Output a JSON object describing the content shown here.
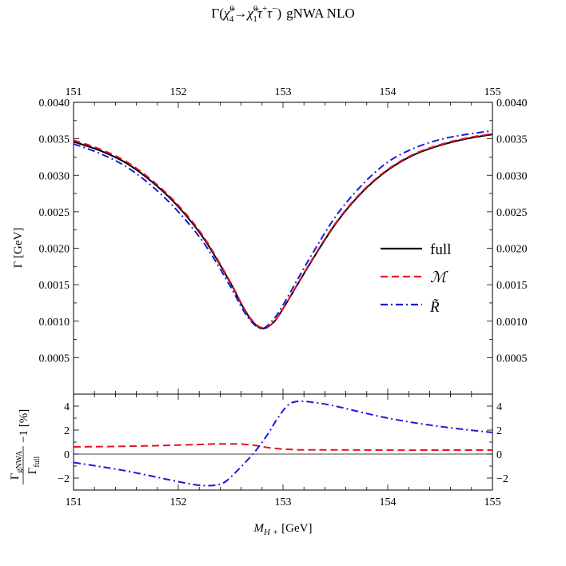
{
  "title": {
    "gamma": "Γ(",
    "chi_a": "χ̃",
    "chi_a_sup": "0",
    "chi_a_sub": "4",
    "arrow": "→",
    "chi_b": "χ̃",
    "chi_b_sup": "0",
    "chi_b_sub": "1",
    "tau1": "τ",
    "tau1_sup": "+",
    "tau2": "τ",
    "tau2_sup": "−",
    "close": ")",
    "suffix": "gNWA NLO"
  },
  "xlabel": {
    "sym": "M",
    "sub": "H +",
    "unit": "[GeV]"
  },
  "main_ylabel": "Γ [GeV]",
  "ratio_ylabel": {
    "num_sym": "Γ",
    "num_sub": "gNWA",
    "den_sym": "Γ",
    "den_sub": "full",
    "tail": "−1 [%]"
  },
  "legend": [
    {
      "label": "full",
      "color": "#000000",
      "dash": "solid"
    },
    {
      "label": "ℳ",
      "color": "#e8112d",
      "dash": "dashed"
    },
    {
      "label": "R̃",
      "color": "#1a1adb",
      "dash": "dashdot"
    }
  ],
  "chart_data": [
    {
      "type": "line",
      "panel": "main",
      "title": "Γ(χ̃⁰₄→χ̃⁰₁τ⁺τ⁻) gNWA NLO",
      "xlabel": "M_H+ [GeV]",
      "ylabel": "Γ [GeV]",
      "xlim": [
        151,
        155
      ],
      "ylim": [
        0,
        0.004
      ],
      "xticks": [
        151,
        152,
        153,
        154,
        155
      ],
      "yticks": [
        0.0005,
        0.001,
        0.0015,
        0.002,
        0.0025,
        0.003,
        0.0035,
        0.004
      ],
      "ytick_labels": [
        "0.0005",
        "0.0010",
        "0.0015",
        "0.0020",
        "0.0025",
        "0.0030",
        "0.0035",
        "0.0040"
      ],
      "x": [
        151.0,
        151.25,
        151.5,
        151.75,
        152.0,
        152.25,
        152.5,
        152.6,
        152.7,
        152.8,
        152.9,
        153.0,
        153.25,
        153.5,
        153.75,
        154.0,
        154.25,
        154.5,
        154.75,
        155.0
      ],
      "series": [
        {
          "name": "full",
          "color": "#000000",
          "dash": "solid",
          "values": [
            0.00346,
            0.00334,
            0.00317,
            0.00291,
            0.00257,
            0.00212,
            0.00152,
            0.00124,
            0.00101,
            0.0009,
            0.00097,
            0.00117,
            0.00177,
            0.00233,
            0.00276,
            0.00307,
            0.00328,
            0.00341,
            0.0035,
            0.00356
          ]
        },
        {
          "name": "M",
          "color": "#e8112d",
          "dash": "dashed",
          "values": [
            0.00348,
            0.00336,
            0.00319,
            0.00293,
            0.00259,
            0.00214,
            0.00153,
            0.00125,
            0.00102,
            0.00091,
            0.00097,
            0.00117,
            0.00178,
            0.00234,
            0.00277,
            0.00308,
            0.00329,
            0.00342,
            0.00351,
            0.00357
          ]
        },
        {
          "name": "R~",
          "color": "#1a1adb",
          "dash": "dashdot",
          "values": [
            0.00343,
            0.0033,
            0.00312,
            0.00285,
            0.0025,
            0.00206,
            0.00147,
            0.0012,
            0.00099,
            0.0009,
            0.00101,
            0.00122,
            0.00185,
            0.00243,
            0.00286,
            0.00318,
            0.00337,
            0.00349,
            0.00356,
            0.00361
          ]
        }
      ]
    },
    {
      "type": "line",
      "panel": "ratio",
      "xlabel": "M_H+ [GeV]",
      "ylabel": "Γ_gNWA/Γ_full − 1 [%]",
      "xlim": [
        151,
        155
      ],
      "ylim": [
        -3,
        5
      ],
      "xticks": [
        151,
        152,
        153,
        154,
        155
      ],
      "yticks": [
        -2,
        0,
        2,
        4
      ],
      "ytick_labels": [
        "−2",
        "0",
        "2",
        "4"
      ],
      "x": [
        151.0,
        151.5,
        152.0,
        152.2,
        152.35,
        152.45,
        152.55,
        152.65,
        152.75,
        152.85,
        152.95,
        153.05,
        153.15,
        153.3,
        153.5,
        154.0,
        154.5,
        155.0
      ],
      "series": [
        {
          "name": "M",
          "color": "#e8112d",
          "dash": "dashed",
          "values": [
            0.6,
            0.65,
            0.75,
            0.8,
            0.85,
            0.85,
            0.85,
            0.8,
            0.7,
            0.55,
            0.45,
            0.4,
            0.35,
            0.35,
            0.35,
            0.33,
            0.33,
            0.33
          ]
        },
        {
          "name": "R~",
          "color": "#1a1adb",
          "dash": "dashdot",
          "values": [
            -0.7,
            -1.4,
            -2.3,
            -2.6,
            -2.6,
            -2.3,
            -1.5,
            -0.6,
            0.4,
            1.6,
            3.0,
            4.1,
            4.4,
            4.3,
            4.0,
            3.0,
            2.3,
            1.8
          ]
        }
      ]
    }
  ]
}
